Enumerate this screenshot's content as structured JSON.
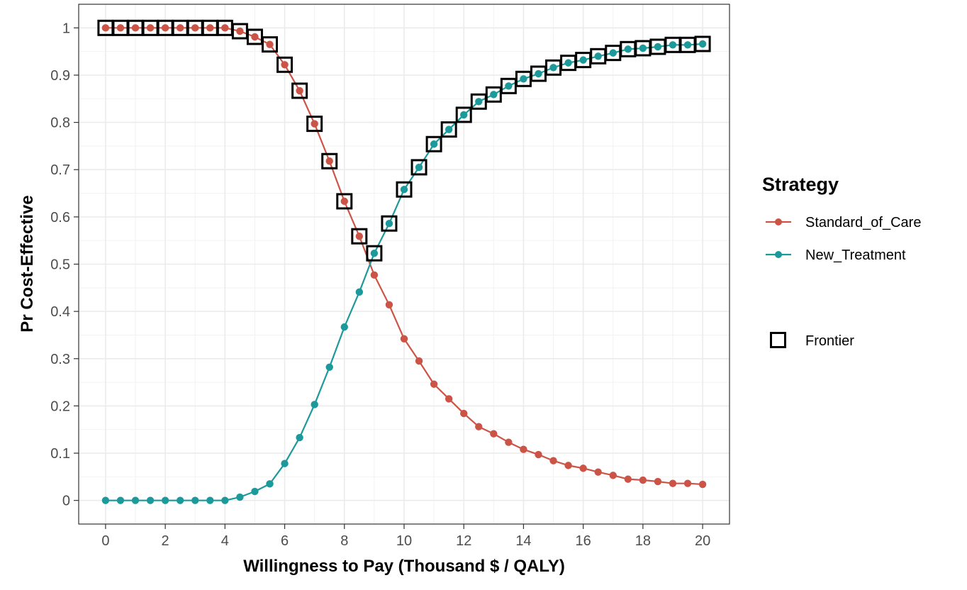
{
  "chart_data": {
    "type": "line",
    "title": "",
    "xlabel": "Willingness to Pay (Thousand $ / QALY)",
    "ylabel": "Pr Cost-Effective",
    "xlim": [
      -0.9,
      20.9
    ],
    "ylim": [
      -0.05,
      1.05
    ],
    "x_ticks": [
      0,
      2,
      4,
      6,
      8,
      10,
      12,
      14,
      16,
      18,
      20
    ],
    "y_ticks": [
      0,
      0.1,
      0.2,
      0.3,
      0.4,
      0.5,
      0.6,
      0.7,
      0.8,
      0.9,
      1
    ],
    "y_tick_labels": [
      "0",
      "0.1",
      "0.2",
      "0.3",
      "0.4",
      "0.5",
      "0.6",
      "0.7",
      "0.8",
      "0.9",
      "1"
    ],
    "grid": true,
    "x": [
      0,
      0.5,
      1,
      1.5,
      2,
      2.5,
      3,
      3.5,
      4,
      4.5,
      5,
      5.5,
      6,
      6.5,
      7,
      7.5,
      8,
      8.5,
      9,
      9.5,
      10,
      10.5,
      11,
      11.5,
      12,
      12.5,
      13,
      13.5,
      14,
      14.5,
      15,
      15.5,
      16,
      16.5,
      17,
      17.5,
      18,
      18.5,
      19,
      19.5,
      20
    ],
    "series": [
      {
        "name": "Standard_of_Care",
        "color": "#cc5446",
        "values": [
          1,
          1,
          1,
          1,
          1,
          1,
          1,
          1,
          1,
          0.993,
          0.981,
          0.965,
          0.922,
          0.867,
          0.797,
          0.718,
          0.633,
          0.559,
          0.477,
          0.414,
          0.342,
          0.295,
          0.246,
          0.215,
          0.184,
          0.156,
          0.141,
          0.123,
          0.108,
          0.097,
          0.084,
          0.074,
          0.068,
          0.06,
          0.053,
          0.045,
          0.043,
          0.04,
          0.036,
          0.036,
          0.034
        ]
      },
      {
        "name": "New_Treatment",
        "color": "#1c9a9b",
        "values": [
          0,
          0,
          0,
          0,
          0,
          0,
          0,
          0,
          0,
          0.007,
          0.019,
          0.035,
          0.078,
          0.133,
          0.203,
          0.282,
          0.367,
          0.441,
          0.523,
          0.586,
          0.658,
          0.705,
          0.754,
          0.785,
          0.816,
          0.844,
          0.859,
          0.877,
          0.892,
          0.903,
          0.916,
          0.926,
          0.932,
          0.94,
          0.947,
          0.955,
          0.957,
          0.96,
          0.964,
          0.964,
          0.966
        ]
      }
    ],
    "frontier": {
      "name": "Frontier",
      "x": [
        0,
        0.5,
        1,
        1.5,
        2,
        2.5,
        3,
        3.5,
        4,
        4.5,
        5,
        5.5,
        6,
        6.5,
        7,
        7.5,
        8,
        8.5,
        9,
        9.5,
        10,
        10.5,
        11,
        11.5,
        12,
        12.5,
        13,
        13.5,
        14,
        14.5,
        15,
        15.5,
        16,
        16.5,
        17,
        17.5,
        18,
        18.5,
        19,
        19.5,
        20
      ],
      "y": [
        1,
        1,
        1,
        1,
        1,
        1,
        1,
        1,
        1,
        0.993,
        0.981,
        0.965,
        0.922,
        0.867,
        0.797,
        0.718,
        0.633,
        0.559,
        0.523,
        0.586,
        0.658,
        0.705,
        0.754,
        0.785,
        0.816,
        0.844,
        0.859,
        0.877,
        0.892,
        0.903,
        0.916,
        0.926,
        0.932,
        0.94,
        0.947,
        0.955,
        0.957,
        0.96,
        0.964,
        0.964,
        0.966
      ]
    },
    "legend": {
      "title": "Strategy",
      "position": "right"
    }
  }
}
